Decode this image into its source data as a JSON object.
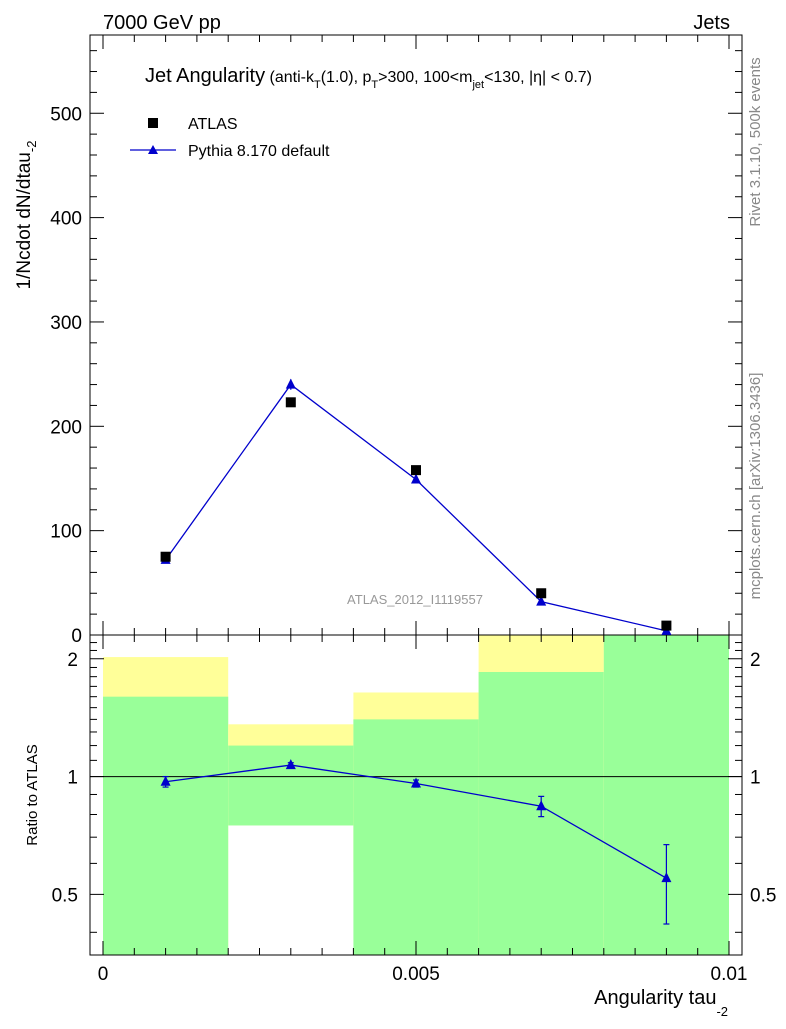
{
  "header": {
    "left": "7000 GeV pp",
    "right": "Jets"
  },
  "side_labels": {
    "rivet": "Rivet 3.1.10,  500k events",
    "mcplots": "mcplots.cern.ch [arXiv:1306.3436]"
  },
  "watermark": "ATLAS_2012_I1119557",
  "title": {
    "main": "Jet Angularity",
    "t1": " (anti-k",
    "t1_sub": "T",
    "t2": "(1.0), p",
    "t2_sub": "T",
    "t3": ">300, 100<m",
    "t3_sub": "jet",
    "t4": "<130, |η| < 0.7)"
  },
  "colors": {
    "mc": "#0000cc",
    "data": "#000000",
    "band_inner": "#99ff99",
    "band_outer": "#ffff99"
  },
  "chart_data": [
    {
      "type": "line",
      "name": "main",
      "ylabel": "1/Ncdot dN/dtau",
      "ylabel_sub": "-2",
      "xlim": [
        0,
        0.01
      ],
      "ylim": [
        0,
        575
      ],
      "yticks": [
        0,
        100,
        200,
        300,
        400,
        500
      ],
      "ytick_labels": [
        "0",
        "100",
        "200",
        "300",
        "400",
        "500"
      ],
      "x": [
        0.001,
        0.003,
        0.005,
        0.007,
        0.009
      ],
      "legend": [
        {
          "label": "ATLAS",
          "marker": "square"
        },
        {
          "label": "Pythia 8.170 default",
          "marker": "triangle"
        }
      ],
      "series": [
        {
          "name": "ATLAS",
          "values": [
            75,
            223,
            158,
            40,
            9
          ]
        },
        {
          "name": "Pythia 8.170 default",
          "values": [
            72,
            240,
            149,
            32,
            4
          ],
          "errors": [
            2,
            5,
            3,
            2,
            1
          ]
        }
      ]
    },
    {
      "type": "line",
      "name": "ratio",
      "ylabel": "Ratio to ATLAS",
      "xlabel": "Angularity tau",
      "xlabel_sub": "-2",
      "xlim": [
        0,
        0.01
      ],
      "ylim": [
        0.35,
        2.3
      ],
      "yticks": [
        0.5,
        1,
        2
      ],
      "ytick_labels": [
        "0.5",
        "1",
        "2"
      ],
      "xticks": [
        0,
        0.005,
        0.01
      ],
      "xtick_labels": [
        "0",
        "0.005",
        "0.01"
      ],
      "bins": [
        [
          0,
          0.002
        ],
        [
          0.002,
          0.004
        ],
        [
          0.004,
          0.006
        ],
        [
          0.006,
          0.008
        ],
        [
          0.008,
          0.01
        ]
      ],
      "band_inner": [
        [
          0.35,
          1.6
        ],
        [
          0.75,
          1.2
        ],
        [
          0.35,
          1.4
        ],
        [
          0.35,
          1.85
        ],
        [
          0.35,
          2.3
        ]
      ],
      "band_outer": [
        [
          0.35,
          2.02
        ],
        [
          0.75,
          1.36
        ],
        [
          0.57,
          1.64
        ],
        [
          0.35,
          2.3
        ],
        [
          0.35,
          2.3
        ]
      ],
      "x": [
        0.001,
        0.003,
        0.005,
        0.007,
        0.009
      ],
      "series": [
        {
          "name": "Pythia 8.170 default",
          "values": [
            0.97,
            1.07,
            0.96,
            0.84,
            0.55
          ],
          "errors_low": [
            0.03,
            0.015,
            0.02,
            0.05,
            0.13
          ],
          "errors_high": [
            0.03,
            0.015,
            0.02,
            0.05,
            0.12
          ]
        }
      ]
    }
  ]
}
